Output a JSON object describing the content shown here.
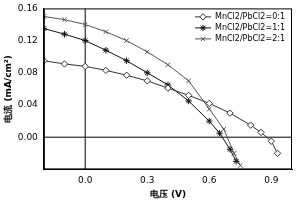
{
  "chart_data": {
    "type": "line",
    "x_label": "电压 (V)",
    "y_label": "电流 (mA/cm²)",
    "xlim": [
      -0.2,
      1.0
    ],
    "xticks": [
      {
        "value": 0,
        "label": "0.0"
      },
      0.3,
      0.6,
      0.9
    ],
    "ylim": [
      -0.04,
      0.16
    ],
    "yticks": [
      {
        "value": 0,
        "label": "0.00"
      },
      0.04,
      0.08,
      0.12,
      0.16
    ],
    "grid": false,
    "legend": "top-right",
    "series": [
      {
        "name": "MnCl2/PbCl2=0:1",
        "color": "#333333",
        "marker": "diamond",
        "x": [
          -0.2,
          -0.1,
          0.0,
          0.1,
          0.2,
          0.3,
          0.4,
          0.5,
          0.6,
          0.7,
          0.8,
          0.85,
          0.9,
          0.93
        ],
        "values": [
          0.095,
          0.091,
          0.088,
          0.083,
          0.077,
          0.07,
          0.061,
          0.052,
          0.042,
          0.03,
          0.015,
          0.006,
          -0.005,
          -0.02
        ]
      },
      {
        "name": "MnCl2/PbCl2=1:1",
        "color": "#111111",
        "marker": "star",
        "x": [
          -0.2,
          -0.1,
          0.0,
          0.1,
          0.2,
          0.3,
          0.4,
          0.5,
          0.6,
          0.65,
          0.7,
          0.73
        ],
        "values": [
          0.135,
          0.128,
          0.12,
          0.108,
          0.095,
          0.08,
          0.065,
          0.045,
          0.02,
          0.005,
          -0.015,
          -0.03
        ]
      },
      {
        "name": "MnCl2/PbCl2=2:1",
        "color": "#555555",
        "marker": "cross",
        "x": [
          -0.2,
          -0.1,
          0.0,
          0.1,
          0.2,
          0.3,
          0.4,
          0.5,
          0.6,
          0.67,
          0.72,
          0.75
        ],
        "values": [
          0.15,
          0.146,
          0.14,
          0.131,
          0.12,
          0.106,
          0.09,
          0.07,
          0.035,
          0.01,
          -0.02,
          -0.035
        ]
      }
    ]
  }
}
